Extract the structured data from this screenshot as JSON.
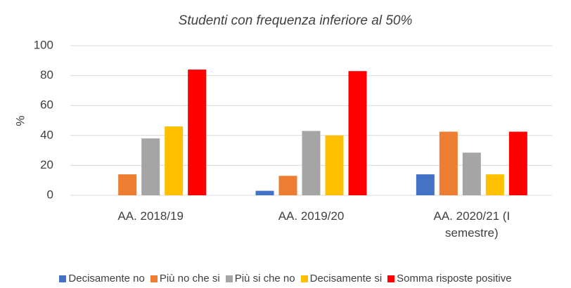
{
  "chart_data": {
    "type": "bar",
    "title": "Studenti con frequenza inferiore al 50%",
    "y_label": "%",
    "categories": [
      "AA. 2018/19",
      "AA. 2019/20",
      "AA. 2020/21 (I semestre)"
    ],
    "series": [
      {
        "name": "Decisamente no",
        "color": "#4472c4",
        "values": [
          0,
          3,
          14
        ]
      },
      {
        "name": "Più no che si",
        "color": "#ed7d31",
        "values": [
          14,
          13,
          42.5
        ]
      },
      {
        "name": "Più si che no",
        "color": "#a5a5a5",
        "values": [
          38,
          43,
          28.5
        ]
      },
      {
        "name": "Decisamente si",
        "color": "#ffc000",
        "values": [
          46,
          40,
          14
        ]
      },
      {
        "name": "Somma risposte positive",
        "color": "#ff0000",
        "values": [
          84,
          83,
          42.5
        ]
      }
    ],
    "ylim": [
      0,
      100
    ],
    "yticks": [
      0,
      20,
      40,
      60,
      80,
      100
    ],
    "grid": true,
    "legend": "bottom"
  }
}
